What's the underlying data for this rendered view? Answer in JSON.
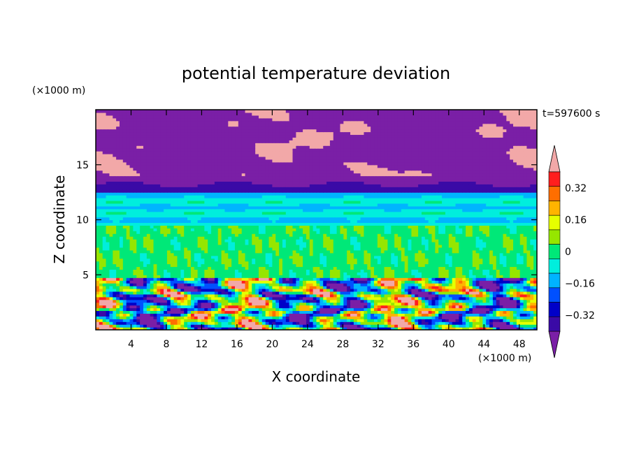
{
  "chart_data": {
    "type": "heatmap",
    "title": "potential temperature deviation",
    "xlabel": "X coordinate",
    "ylabel": "Z coordinate",
    "x_unit": "(×1000 m)",
    "y_unit": "(×1000 m)",
    "time_label": "t=597600 s",
    "xlim": [
      0,
      50
    ],
    "ylim": [
      0,
      20
    ],
    "x_ticks": [
      4,
      8,
      12,
      16,
      20,
      24,
      28,
      32,
      36,
      40,
      44,
      48
    ],
    "y_ticks": [
      5,
      10,
      15
    ],
    "colorbar": {
      "levels": [
        -0.48,
        -0.4,
        -0.32,
        -0.24,
        -0.16,
        -0.08,
        0,
        0.08,
        0.16,
        0.24,
        0.32,
        0.4,
        0.48
      ],
      "labeled_ticks": [
        0.32,
        0.16,
        0,
        -0.16,
        -0.32
      ],
      "labels": [
        "0.32",
        "0.16",
        "0",
        "−0.16",
        "−0.32"
      ],
      "colors": [
        "#7a1fa6",
        "#3a0aa6",
        "#0000c8",
        "#0050ff",
        "#00b4ff",
        "#00eedd",
        "#00e878",
        "#96e600",
        "#e6ff00",
        "#ffb400",
        "#ff6e00",
        "#ff1e1e",
        "#f2a8a8"
      ],
      "extend": "both"
    },
    "layers": [
      {
        "z_range": [
          0,
          4.8
        ],
        "description_values": [
          -0.4,
          0.48
        ],
        "pattern": "turbulent"
      },
      {
        "z_range": [
          4.8,
          9.5
        ],
        "value_range": [
          -0.04,
          0.12
        ],
        "pattern": "mixed"
      },
      {
        "z_range": [
          9.5,
          12.5
        ],
        "value_range": [
          -0.12,
          0.04
        ],
        "pattern": "banded"
      },
      {
        "z_range": [
          12.5,
          14
        ],
        "value_range": [
          -0.48,
          -0.3
        ],
        "pattern": "banded"
      },
      {
        "z_range": [
          14,
          20
        ],
        "value_range": [
          -0.48,
          0.48
        ],
        "pattern": "cloudy"
      }
    ]
  }
}
